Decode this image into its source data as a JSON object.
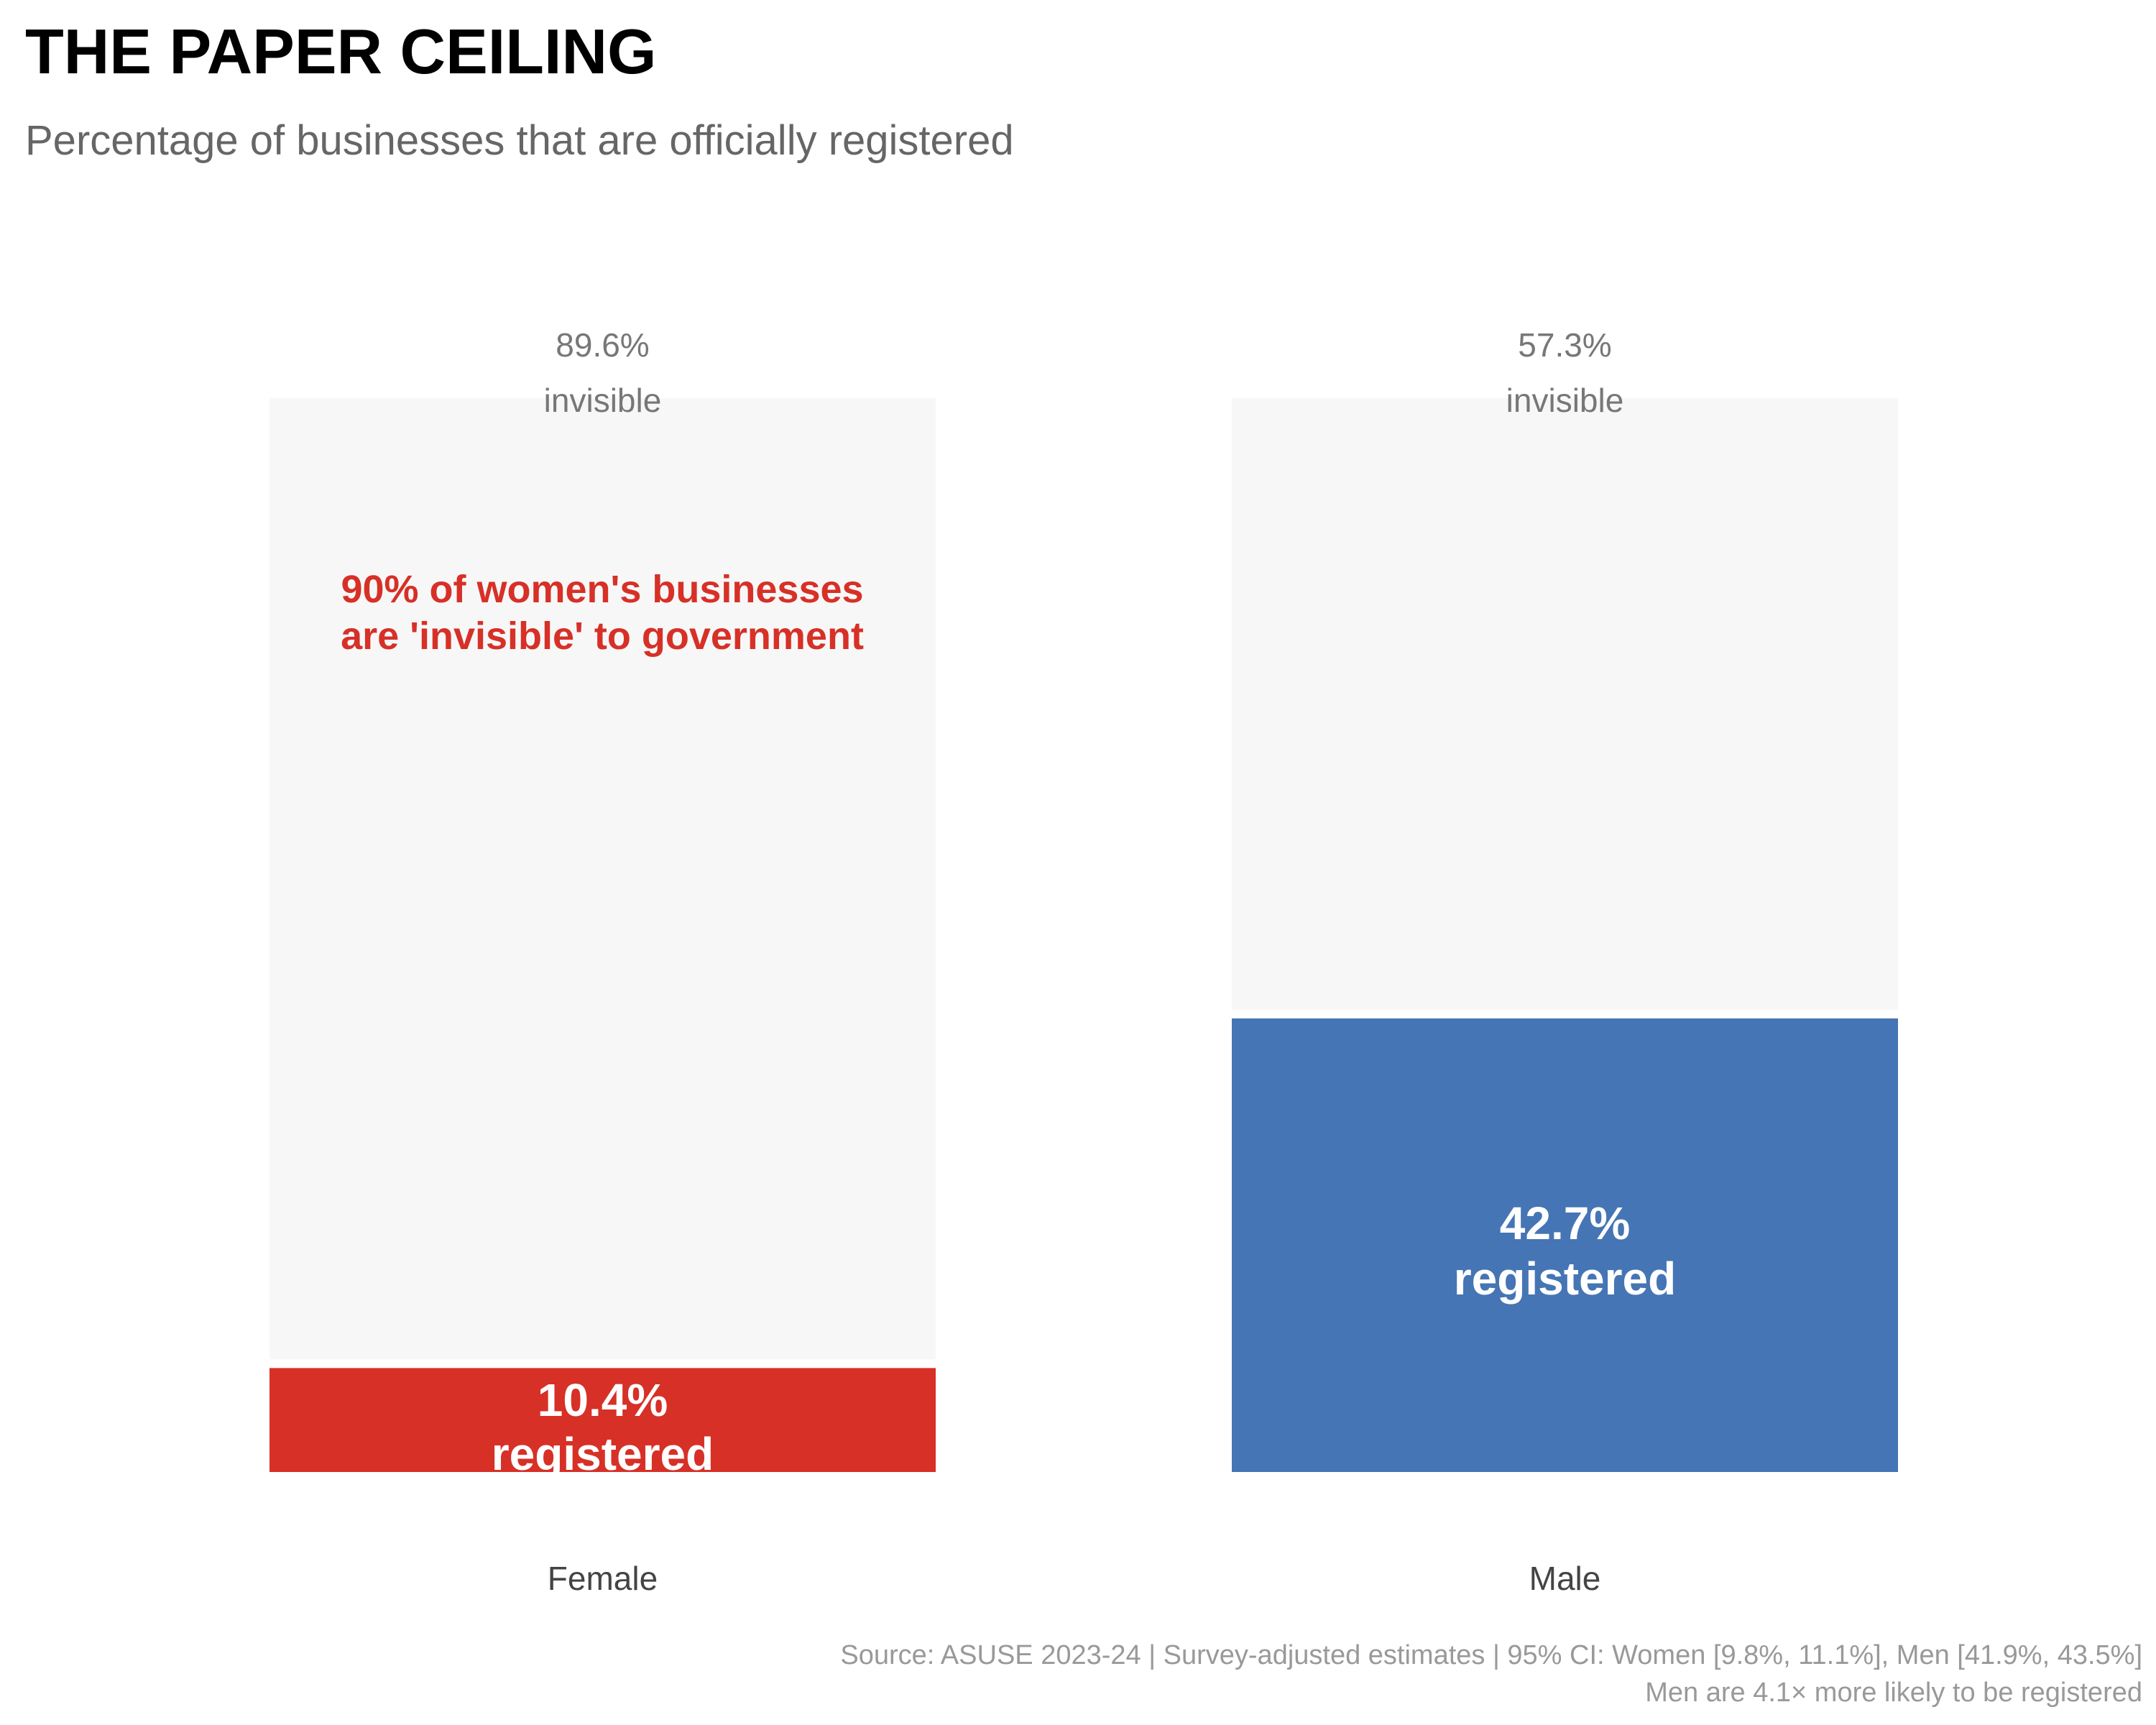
{
  "title": "THE PAPER CEILING",
  "subtitle": "Percentage of businesses that are officially registered",
  "annotation": [
    "90% of women's businesses",
    "are 'invisible' to government"
  ],
  "footer": {
    "source": "Source: ASUSE 2023-24 | Survey-adjusted estimates | 95% CI: Women [9.8%, 11.1%], Men [41.9%, 43.5%]",
    "note": "Men are 4.1× more likely to be registered"
  },
  "colors": {
    "female": "#D73027",
    "male": "#4575B4",
    "invisible": "#F7F7F7",
    "annotation": "#D73027"
  },
  "chart_data": {
    "type": "bar",
    "stacked": true,
    "categories": [
      "Female",
      "Male"
    ],
    "series": [
      {
        "name": "registered",
        "values": [
          10.4,
          42.7
        ],
        "labels": [
          [
            "10.4%",
            "registered"
          ],
          [
            "42.7%",
            "registered"
          ]
        ]
      },
      {
        "name": "invisible",
        "values": [
          89.6,
          57.3
        ],
        "labels": [
          [
            "89.6%",
            "invisible"
          ],
          [
            "57.3%",
            "invisible"
          ]
        ]
      }
    ],
    "ylim": [
      0,
      100
    ],
    "grid": false,
    "axes_visible": false
  }
}
